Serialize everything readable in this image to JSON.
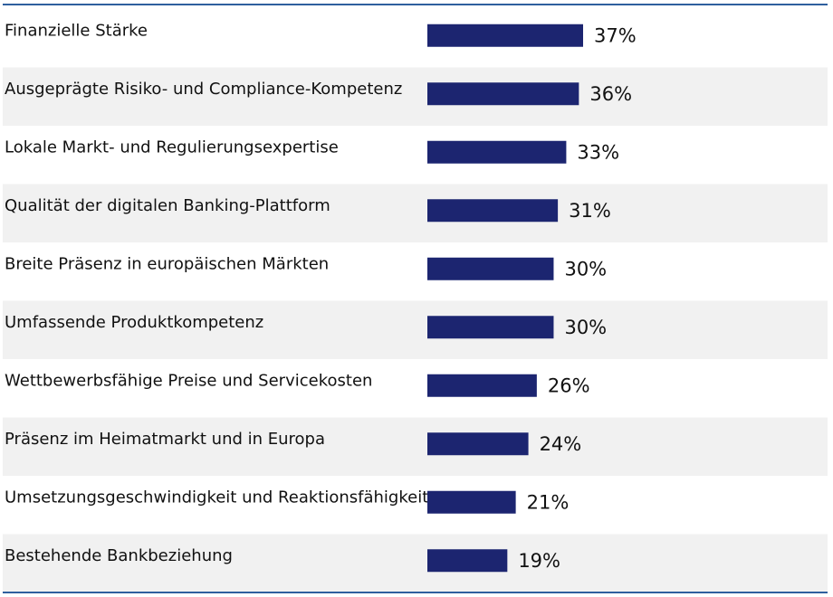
{
  "chart_data": {
    "type": "bar",
    "orientation": "horizontal",
    "categories": [
      "Finanzielle Stärke",
      "Ausgeprägte Risiko- und Compliance-Kompetenz",
      "Lokale Markt- und Regulierungsexpertise",
      "Qualität der digitalen Banking-Plattform",
      "Breite Präsenz in europäischen Märkten",
      "Umfassende Produktkompetenz",
      "Wettbewerbsfähige Preise und Servicekosten",
      "Präsenz im Heimatmarkt und in Europa",
      "Umsetzungsgeschwindigkeit und Reaktionsfähigkeit",
      "Bestehende Bankbeziehung"
    ],
    "values": [
      37,
      36,
      33,
      31,
      30,
      30,
      26,
      24,
      21,
      19
    ],
    "value_labels": [
      "37%",
      "36%",
      "33%",
      "31%",
      "30%",
      "30%",
      "26%",
      "24%",
      "21%",
      "19%"
    ],
    "title": "",
    "xlabel": "",
    "ylabel": "",
    "unit": "%",
    "xlim": [
      0,
      100
    ],
    "grid": false,
    "legend": "none",
    "colors": {
      "bar": "#1c2570",
      "rule": "#2f5f9e",
      "stripe": "#f1f1f1",
      "text": "#111111"
    }
  }
}
